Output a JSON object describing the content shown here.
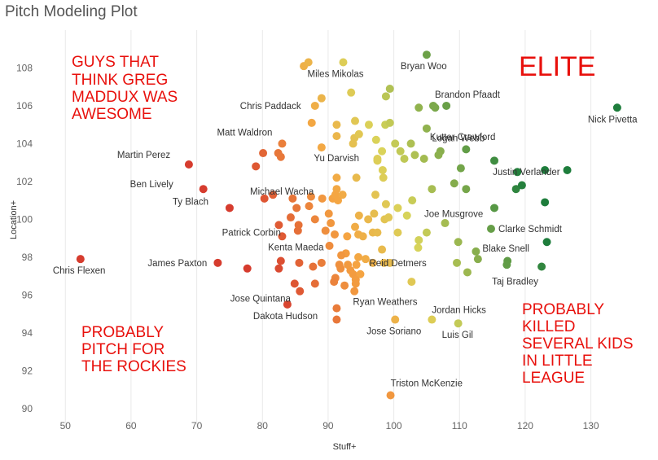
{
  "chart_data": {
    "type": "scatter",
    "title": "Pitch Modeling Plot",
    "xlabel": "Stuff+",
    "ylabel": "Location+",
    "xlim": [
      46,
      136
    ],
    "ylim": [
      89,
      110
    ],
    "xticks": [
      50,
      60,
      70,
      80,
      90,
      100,
      110,
      120,
      130
    ],
    "yticks": [
      90,
      92,
      94,
      96,
      98,
      100,
      102,
      104,
      106,
      108
    ],
    "grid": "vertical",
    "color_scale": {
      "low": "#d63c2e",
      "mid": "#f5a442",
      "midhigh": "#d9d45a",
      "high": "#1e7d3c"
    },
    "labeled_points": [
      {
        "name": "Bryan Woo",
        "x": 105.0,
        "y": 108.7
      },
      {
        "name": "Miles Mikolas",
        "x": 92.3,
        "y": 108.3
      },
      {
        "name": "Brandon Pfaadt",
        "x": 106.0,
        "y": 106.0
      },
      {
        "name": "Chris Paddack",
        "x": 88.0,
        "y": 106.0
      },
      {
        "name": "Nick Pivetta",
        "x": 134.0,
        "y": 105.9
      },
      {
        "name": "Kutter Crawford",
        "x": 105.0,
        "y": 104.8
      },
      {
        "name": "Matt Waldron",
        "x": 83.0,
        "y": 104.0
      },
      {
        "name": "Logan Webb",
        "x": 111.0,
        "y": 103.7
      },
      {
        "name": "Martin Perez",
        "x": 68.8,
        "y": 102.9
      },
      {
        "name": "Yu Darvish",
        "x": 97.5,
        "y": 103.2
      },
      {
        "name": "Ben Lively",
        "x": 71.0,
        "y": 101.6
      },
      {
        "name": "Justin Verlander",
        "x": 123.0,
        "y": 102.6
      },
      {
        "name": "Michael Wacha",
        "x": 91.5,
        "y": 101.0
      },
      {
        "name": "Ty Blach",
        "x": 75.0,
        "y": 100.6
      },
      {
        "name": "Joe Musgrove",
        "x": 115.3,
        "y": 100.6
      },
      {
        "name": "Patrick Corbin",
        "x": 85.5,
        "y": 99.7
      },
      {
        "name": "Clarke Schmidt",
        "x": 114.8,
        "y": 99.5
      },
      {
        "name": "Chris Flexen",
        "x": 52.3,
        "y": 97.9
      },
      {
        "name": "Kenta Maeda",
        "x": 92.0,
        "y": 98.1
      },
      {
        "name": "Blake Snell",
        "x": 112.5,
        "y": 98.3
      },
      {
        "name": "James Paxton",
        "x": 73.2,
        "y": 97.7
      },
      {
        "name": "Reid Detmers",
        "x": 98.5,
        "y": 97.7
      },
      {
        "name": "Jose Quintana",
        "x": 88.0,
        "y": 96.6
      },
      {
        "name": "Taj Bradley",
        "x": 122.5,
        "y": 97.5
      },
      {
        "name": "Ryan Weathers",
        "x": 91.3,
        "y": 95.3
      },
      {
        "name": "Jordan Hicks",
        "x": 105.8,
        "y": 94.7
      },
      {
        "name": "Dakota Hudson",
        "x": 83.8,
        "y": 95.5
      },
      {
        "name": "Jose Soriano",
        "x": 100.2,
        "y": 94.7
      },
      {
        "name": "Luis Gil",
        "x": 109.8,
        "y": 94.5
      },
      {
        "name": "Triston McKenzie",
        "x": 99.5,
        "y": 90.7
      }
    ],
    "other_points": [
      {
        "x": 86.3,
        "y": 108.1
      },
      {
        "x": 87.0,
        "y": 108.3
      },
      {
        "x": 93.5,
        "y": 106.7
      },
      {
        "x": 99.4,
        "y": 106.9
      },
      {
        "x": 98.8,
        "y": 106.5
      },
      {
        "x": 89.0,
        "y": 106.4
      },
      {
        "x": 103.8,
        "y": 105.9
      },
      {
        "x": 108.0,
        "y": 106.0
      },
      {
        "x": 106.3,
        "y": 105.9
      },
      {
        "x": 87.5,
        "y": 105.1
      },
      {
        "x": 91.3,
        "y": 105.0
      },
      {
        "x": 94.1,
        "y": 105.2
      },
      {
        "x": 96.2,
        "y": 105.0
      },
      {
        "x": 98.7,
        "y": 105.0
      },
      {
        "x": 99.4,
        "y": 105.1
      },
      {
        "x": 91.3,
        "y": 104.4
      },
      {
        "x": 94.0,
        "y": 104.3
      },
      {
        "x": 94.7,
        "y": 104.5
      },
      {
        "x": 97.3,
        "y": 104.2
      },
      {
        "x": 100.2,
        "y": 104.0
      },
      {
        "x": 102.6,
        "y": 104.0
      },
      {
        "x": 89.0,
        "y": 103.8
      },
      {
        "x": 93.8,
        "y": 104.0
      },
      {
        "x": 101.0,
        "y": 103.6
      },
      {
        "x": 107.1,
        "y": 103.6
      },
      {
        "x": 104.6,
        "y": 103.2
      },
      {
        "x": 98.2,
        "y": 103.6
      },
      {
        "x": 101.6,
        "y": 103.2
      },
      {
        "x": 106.8,
        "y": 103.4
      },
      {
        "x": 115.3,
        "y": 103.1
      },
      {
        "x": 80.1,
        "y": 103.5
      },
      {
        "x": 82.4,
        "y": 103.5
      },
      {
        "x": 82.8,
        "y": 103.3
      },
      {
        "x": 79.0,
        "y": 102.8
      },
      {
        "x": 97.5,
        "y": 103.1
      },
      {
        "x": 103.2,
        "y": 103.4
      },
      {
        "x": 110.2,
        "y": 102.7
      },
      {
        "x": 98.3,
        "y": 102.6
      },
      {
        "x": 98.4,
        "y": 102.2
      },
      {
        "x": 91.3,
        "y": 102.2
      },
      {
        "x": 94.3,
        "y": 102.2
      },
      {
        "x": 109.2,
        "y": 101.9
      },
      {
        "x": 111.0,
        "y": 101.6
      },
      {
        "x": 118.6,
        "y": 101.6
      },
      {
        "x": 119.5,
        "y": 101.8
      },
      {
        "x": 126.4,
        "y": 102.6
      },
      {
        "x": 118.8,
        "y": 102.5
      },
      {
        "x": 105.8,
        "y": 101.6
      },
      {
        "x": 91.3,
        "y": 101.6
      },
      {
        "x": 87.4,
        "y": 101.2
      },
      {
        "x": 80.3,
        "y": 101.1
      },
      {
        "x": 81.6,
        "y": 101.3
      },
      {
        "x": 84.6,
        "y": 101.1
      },
      {
        "x": 89.1,
        "y": 101.1
      },
      {
        "x": 90.7,
        "y": 101.1
      },
      {
        "x": 91.1,
        "y": 101.3
      },
      {
        "x": 97.2,
        "y": 101.3
      },
      {
        "x": 102.8,
        "y": 101.0
      },
      {
        "x": 92.2,
        "y": 101.3
      },
      {
        "x": 123.0,
        "y": 100.9
      },
      {
        "x": 87.1,
        "y": 100.7
      },
      {
        "x": 85.2,
        "y": 100.6
      },
      {
        "x": 90.1,
        "y": 100.3
      },
      {
        "x": 98.8,
        "y": 100.8
      },
      {
        "x": 100.6,
        "y": 100.6
      },
      {
        "x": 94.7,
        "y": 100.2
      },
      {
        "x": 97.0,
        "y": 100.3
      },
      {
        "x": 102.0,
        "y": 100.2
      },
      {
        "x": 84.3,
        "y": 100.1
      },
      {
        "x": 88.0,
        "y": 100.0
      },
      {
        "x": 96.1,
        "y": 100.0
      },
      {
        "x": 90.4,
        "y": 99.8
      },
      {
        "x": 98.6,
        "y": 100.0
      },
      {
        "x": 99.2,
        "y": 100.1
      },
      {
        "x": 82.5,
        "y": 99.7
      },
      {
        "x": 107.8,
        "y": 99.8
      },
      {
        "x": 94.1,
        "y": 99.6
      },
      {
        "x": 85.4,
        "y": 99.4
      },
      {
        "x": 89.6,
        "y": 99.4
      },
      {
        "x": 91.0,
        "y": 99.2
      },
      {
        "x": 96.8,
        "y": 99.3
      },
      {
        "x": 97.5,
        "y": 99.3
      },
      {
        "x": 100.6,
        "y": 99.3
      },
      {
        "x": 105.0,
        "y": 99.3
      },
      {
        "x": 94.6,
        "y": 99.2
      },
      {
        "x": 83.0,
        "y": 99.1
      },
      {
        "x": 92.9,
        "y": 99.1
      },
      {
        "x": 95.3,
        "y": 99.1
      },
      {
        "x": 103.8,
        "y": 98.9
      },
      {
        "x": 109.8,
        "y": 98.8
      },
      {
        "x": 123.3,
        "y": 98.8
      },
      {
        "x": 90.2,
        "y": 98.6
      },
      {
        "x": 98.2,
        "y": 98.4
      },
      {
        "x": 103.7,
        "y": 98.5
      },
      {
        "x": 92.7,
        "y": 98.2
      },
      {
        "x": 94.6,
        "y": 98.0
      },
      {
        "x": 95.7,
        "y": 97.9
      },
      {
        "x": 82.8,
        "y": 97.8
      },
      {
        "x": 85.6,
        "y": 97.7
      },
      {
        "x": 89.0,
        "y": 97.7
      },
      {
        "x": 91.7,
        "y": 97.6
      },
      {
        "x": 93.0,
        "y": 97.6
      },
      {
        "x": 96.8,
        "y": 97.7
      },
      {
        "x": 99.4,
        "y": 97.7
      },
      {
        "x": 109.6,
        "y": 97.7
      },
      {
        "x": 112.8,
        "y": 97.9
      },
      {
        "x": 117.3,
        "y": 97.8
      },
      {
        "x": 117.2,
        "y": 97.6
      },
      {
        "x": 77.7,
        "y": 97.4
      },
      {
        "x": 82.5,
        "y": 97.4
      },
      {
        "x": 87.7,
        "y": 97.5
      },
      {
        "x": 91.9,
        "y": 97.4
      },
      {
        "x": 93.4,
        "y": 97.3
      },
      {
        "x": 94.3,
        "y": 97.6
      },
      {
        "x": 93.8,
        "y": 97.1
      },
      {
        "x": 94.9,
        "y": 97.1
      },
      {
        "x": 111.2,
        "y": 97.2
      },
      {
        "x": 91.1,
        "y": 96.9
      },
      {
        "x": 94.2,
        "y": 96.8
      },
      {
        "x": 84.9,
        "y": 96.6
      },
      {
        "x": 90.9,
        "y": 96.7
      },
      {
        "x": 92.5,
        "y": 96.5
      },
      {
        "x": 94.2,
        "y": 96.6
      },
      {
        "x": 102.7,
        "y": 96.7
      },
      {
        "x": 85.7,
        "y": 96.2
      },
      {
        "x": 94.0,
        "y": 96.2
      },
      {
        "x": 91.3,
        "y": 94.7
      }
    ]
  },
  "annotations": {
    "top_left": [
      "GUYS THAT",
      "THINK GREG",
      "MADDUX WAS",
      "AWESOME"
    ],
    "top_right": "ELITE",
    "bottom_left": [
      "PROBABLY",
      "PITCH FOR",
      "THE ROCKIES"
    ],
    "bottom_right": [
      "PROBABLY",
      "KILLED",
      "SEVERAL KIDS",
      "IN LITTLE",
      "LEAGUE"
    ]
  }
}
